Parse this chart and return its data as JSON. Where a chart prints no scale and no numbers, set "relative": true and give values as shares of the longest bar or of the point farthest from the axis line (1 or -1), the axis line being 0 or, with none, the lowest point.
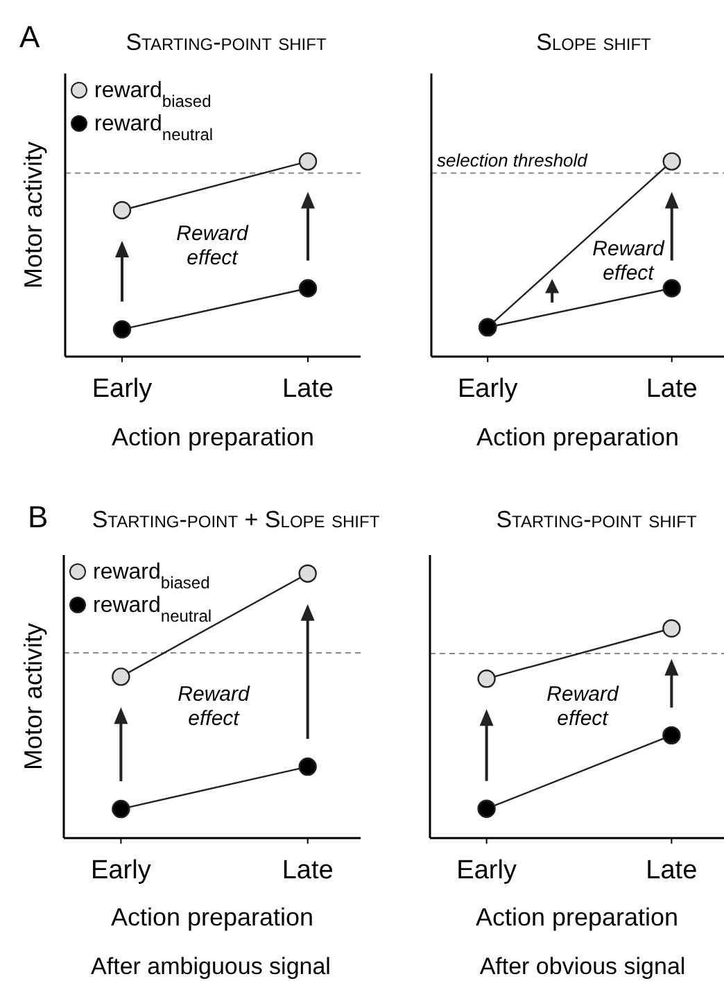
{
  "chart_data": [
    {
      "type": "line",
      "title": "Starting-point shift",
      "ylabel": "Motor activity",
      "xlabel": "Action preparation",
      "categories": [
        "Early",
        "Late"
      ],
      "relative": true,
      "marker": "circle",
      "legend": "top left",
      "series": [
        {
          "name": "reward$_{biased}$",
          "color": "#dddddd",
          "values": [
            0.75,
            1
          ]
        },
        {
          "name": "reward$_{neutral}$",
          "color": "#000000",
          "values": [
            0.14,
            0.35
          ]
        }
      ],
      "ref_lines": [
        {
          "axis": "y",
          "value": 0.94,
          "line_style": "dashed",
          "color": "#888888"
        }
      ],
      "annotations": [
        "A",
        "Reward effect"
      ]
    },
    {
      "type": "line",
      "title": "Slope shift",
      "xlabel": "Action preparation",
      "categories": [
        "Early",
        "Late"
      ],
      "relative": true,
      "marker": "circle",
      "series": [
        {
          "color": "#dddddd",
          "values": [
            0.15,
            1
          ]
        },
        {
          "color": "#000000",
          "values": [
            0.15,
            0.35
          ]
        }
      ],
      "ref_lines": [
        {
          "axis": "y",
          "value": 0.94,
          "label": "selection threshold",
          "line_style": "dashed",
          "color": "#888888"
        }
      ],
      "annotations": [
        "Reward effect"
      ]
    },
    {
      "type": "line",
      "title": "Starting-point + Slope shift",
      "ylabel": "Motor activity",
      "xlabel": "Action preparation",
      "categories": [
        "Early",
        "Late"
      ],
      "relative": true,
      "marker": "circle",
      "legend": "top left",
      "series": [
        {
          "name": "reward$_{biased}$",
          "color": "#dddddd",
          "values": [
            0.61,
            1
          ]
        },
        {
          "name": "reward$_{neutral}$",
          "color": "#000000",
          "values": [
            0.11,
            0.27
          ]
        }
      ],
      "ref_lines": [
        {
          "axis": "y",
          "value": 0.7,
          "line_style": "dashed",
          "color": "#888888"
        }
      ],
      "annotations": [
        "B",
        "Reward effect",
        "After ambiguous signal"
      ]
    },
    {
      "type": "line",
      "title": "Starting-point shift",
      "xlabel": "Action preparation",
      "categories": [
        "Early",
        "Late"
      ],
      "relative": true,
      "marker": "circle",
      "series": [
        {
          "color": "#dddddd",
          "values": [
            0.76,
            1
          ]
        },
        {
          "color": "#000000",
          "values": [
            0.14,
            0.49
          ]
        }
      ],
      "ref_lines": [
        {
          "axis": "y",
          "value": 0.88,
          "line_style": "dashed",
          "color": "#888888"
        }
      ],
      "annotations": [
        "Reward effect",
        "After obvious signal"
      ]
    }
  ]
}
